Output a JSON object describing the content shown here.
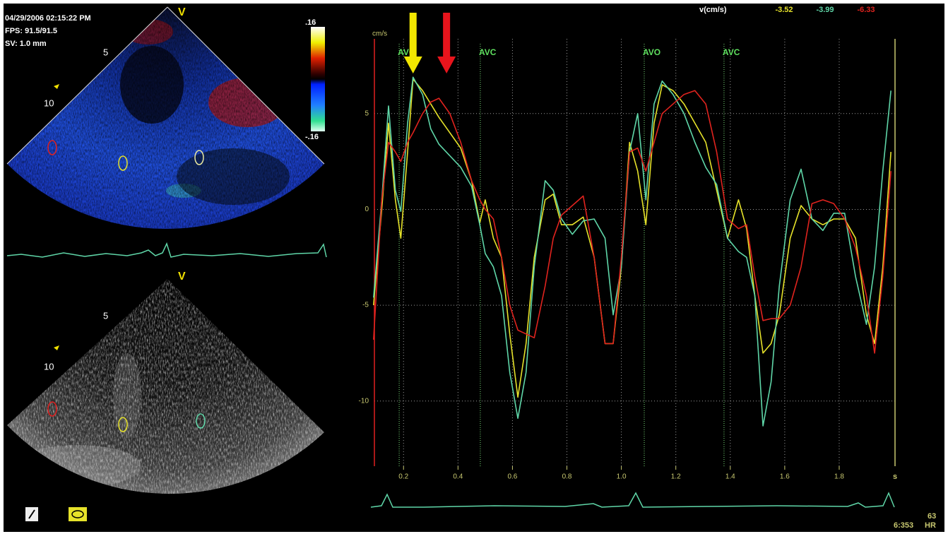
{
  "header": {
    "timestamp": "04/29/2006 02:15:22 PM",
    "fps": "FPS: 91.5/91.5",
    "sv": "SV: 1.0 mm",
    "velocity_label": "v(cm/s)"
  },
  "color_scale": {
    "top": ".16",
    "bottom": "-.16"
  },
  "image_top": {
    "label": "V",
    "depth_ticks": [
      "5",
      "10"
    ]
  },
  "image_bottom": {
    "label": "V",
    "depth_ticks": [
      "5",
      "10"
    ]
  },
  "status": {
    "hr_value": 63,
    "hr_label": "HR",
    "time": "6:353"
  },
  "chart_data": {
    "type": "line",
    "y_label": "cm/s",
    "x_label": "s",
    "grid": true,
    "xlim": [
      0.093,
      2.005
    ],
    "ylim": [
      -13.4,
      8.9
    ],
    "xticks": [
      0.2,
      0.4,
      0.6,
      0.8,
      {
        "value": 1.0,
        "label": "1.0"
      },
      1.2,
      1.4,
      1.6,
      1.8
    ],
    "yticks": [
      5,
      0,
      -5,
      -10
    ],
    "x": [
      0.09,
      0.12,
      0.145,
      0.17,
      0.19,
      0.215,
      0.235,
      0.27,
      0.3,
      0.33,
      0.37,
      0.41,
      0.45,
      0.48,
      0.5,
      0.53,
      0.56,
      0.59,
      0.62,
      0.65,
      0.68,
      0.72,
      0.75,
      0.78,
      0.82,
      0.86,
      0.9,
      0.94,
      0.97,
      1.0,
      1.03,
      1.06,
      1.09,
      1.12,
      1.15,
      1.19,
      1.23,
      1.27,
      1.31,
      1.35,
      1.39,
      1.43,
      1.46,
      1.49,
      1.52,
      1.55,
      1.58,
      1.62,
      1.66,
      1.7,
      1.74,
      1.78,
      1.82,
      1.86,
      1.9,
      1.93,
      1.96,
      1.99
    ],
    "series": [
      {
        "color": "#e6e22a",
        "current_value": -3.52,
        "values": [
          -5.0,
          0.0,
          4.5,
          0.5,
          -1.5,
          3.0,
          6.8,
          6.2,
          5.5,
          4.8,
          4.0,
          3.2,
          1.5,
          -0.7,
          0.5,
          -1.5,
          -2.5,
          -6.5,
          -9.8,
          -7.0,
          -2.5,
          0.5,
          0.8,
          -0.8,
          -0.8,
          -0.4,
          -2.5,
          -7.0,
          -7.0,
          -3.0,
          3.5,
          2.0,
          -0.8,
          4.5,
          6.5,
          6.2,
          5.5,
          4.5,
          3.5,
          1.0,
          -1.5,
          0.5,
          -1.0,
          -4.5,
          -7.5,
          -7.0,
          -5.5,
          -1.5,
          0.2,
          -0.5,
          -0.8,
          -0.5,
          -0.5,
          -1.5,
          -5.5,
          -7.0,
          -3.0,
          3.0
        ]
      },
      {
        "color": "#5fd6a8",
        "current_value": -3.99,
        "values": [
          -4.6,
          0.5,
          5.4,
          1.0,
          -0.1,
          4.5,
          6.9,
          6.0,
          4.2,
          3.4,
          2.8,
          2.2,
          1.2,
          -0.8,
          -2.3,
          -3.0,
          -4.5,
          -8.5,
          -10.9,
          -8.5,
          -3.0,
          1.5,
          1.0,
          -0.5,
          -1.3,
          -0.6,
          -0.5,
          -1.5,
          -5.5,
          -3.0,
          3.0,
          5.0,
          0.5,
          5.5,
          6.7,
          6.0,
          5.0,
          3.5,
          2.2,
          1.3,
          -1.5,
          -2.2,
          -2.5,
          -4.5,
          -11.3,
          -9.0,
          -4.0,
          0.5,
          2.1,
          -0.5,
          -1.1,
          -0.2,
          -0.2,
          -3.5,
          -6.0,
          -3.0,
          2.0,
          6.2
        ]
      },
      {
        "color": "#e0231e",
        "current_value": -6.33,
        "values": [
          -6.8,
          0.5,
          3.5,
          3.0,
          2.5,
          3.5,
          4.0,
          5.0,
          5.6,
          5.8,
          5.0,
          3.5,
          1.5,
          0.5,
          0.0,
          -0.5,
          -2.5,
          -5.0,
          -6.3,
          -6.5,
          -6.7,
          -4.0,
          -1.5,
          -0.3,
          0.2,
          0.7,
          -2.5,
          -7.0,
          -7.0,
          -2.5,
          3.0,
          3.2,
          2.0,
          3.5,
          5.0,
          5.5,
          6.0,
          6.2,
          5.5,
          3.0,
          -0.5,
          -1.0,
          -0.8,
          -3.5,
          -5.8,
          -5.7,
          -5.7,
          -5.0,
          -3.0,
          0.3,
          0.5,
          0.3,
          -0.5,
          -2.0,
          -4.5,
          -7.5,
          -3.5,
          2.0
        ]
      }
    ],
    "markers": [
      {
        "x": 0.184,
        "label": "AVO"
      },
      {
        "x": 0.482,
        "label": "AVC"
      },
      {
        "x": 1.084,
        "label": "AVO"
      },
      {
        "x": 1.377,
        "label": "AVC"
      }
    ],
    "arrows": [
      {
        "x": 0.235,
        "color": "#f2e600"
      },
      {
        "x": 0.358,
        "color": "#e8141c"
      }
    ]
  }
}
